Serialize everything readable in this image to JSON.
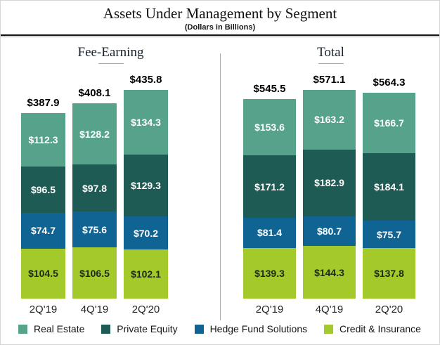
{
  "header": {
    "title": "Assets Under Management by Segment",
    "subtitle": "(Dollars in Billions)"
  },
  "colors": {
    "real_estate": "#57A28B",
    "private_equity": "#1E5B55",
    "hedge_fund_solutions": "#0F6493",
    "credit_insurance": "#A3C92A"
  },
  "legend": {
    "items": [
      {
        "label": "Real Estate",
        "color": "#57A28B"
      },
      {
        "label": "Private Equity",
        "color": "#1E5B55"
      },
      {
        "label": "Hedge Fund Solutions",
        "color": "#0F6493"
      },
      {
        "label": "Credit & Insurance",
        "color": "#A3C92A"
      }
    ]
  },
  "chart_data": [
    {
      "type": "bar",
      "stacked": true,
      "group_title": "Fee-Earning",
      "value_prefix": "$",
      "categories": [
        "2Q'19",
        "4Q'19",
        "2Q'20"
      ],
      "series": [
        {
          "name": "Real Estate",
          "color": "#57A28B",
          "label_color": "#ffffff",
          "values": [
            112.3,
            128.2,
            134.3
          ]
        },
        {
          "name": "Private Equity",
          "color": "#1E5B55",
          "label_color": "#ffffff",
          "values": [
            96.5,
            97.8,
            129.3
          ]
        },
        {
          "name": "Hedge Fund Solutions",
          "color": "#0F6493",
          "label_color": "#ffffff",
          "values": [
            74.7,
            75.6,
            70.2
          ]
        },
        {
          "name": "Credit & Insurance",
          "color": "#A3C92A",
          "label_color": "#1c2a1c",
          "values": [
            104.5,
            106.5,
            102.1
          ]
        }
      ],
      "totals": [
        387.9,
        408.1,
        435.8
      ]
    },
    {
      "type": "bar",
      "stacked": true,
      "group_title": "Total",
      "value_prefix": "$",
      "categories": [
        "2Q'19",
        "4Q'19",
        "2Q'20"
      ],
      "series": [
        {
          "name": "Real Estate",
          "color": "#57A28B",
          "label_color": "#ffffff",
          "values": [
            153.6,
            163.2,
            166.7
          ]
        },
        {
          "name": "Private Equity",
          "color": "#1E5B55",
          "label_color": "#ffffff",
          "values": [
            171.2,
            182.9,
            184.1
          ]
        },
        {
          "name": "Hedge Fund Solutions",
          "color": "#0F6493",
          "label_color": "#ffffff",
          "values": [
            81.4,
            80.7,
            75.7
          ]
        },
        {
          "name": "Credit & Insurance",
          "color": "#A3C92A",
          "label_color": "#1c2a1c",
          "values": [
            139.3,
            144.3,
            137.8
          ]
        }
      ],
      "totals": [
        545.5,
        571.1,
        564.3
      ]
    }
  ]
}
